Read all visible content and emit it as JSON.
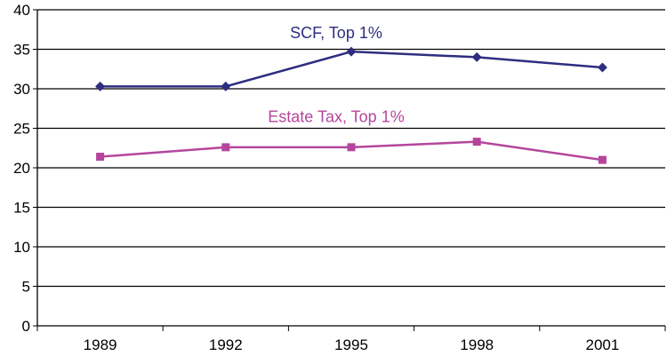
{
  "chart_data": {
    "type": "line",
    "categories": [
      "1989",
      "1992",
      "1995",
      "1998",
      "2001"
    ],
    "ylim": [
      0,
      40
    ],
    "yticks": [
      0,
      5,
      10,
      15,
      20,
      25,
      30,
      35,
      40
    ],
    "grid": true,
    "series": [
      {
        "name": "SCF, Top 1%",
        "values": [
          30.3,
          30.3,
          34.7,
          34.0,
          32.7
        ],
        "color": "#2E2D7F",
        "marker": "diamond"
      },
      {
        "name": "Estate Tax, Top 1%",
        "values": [
          21.4,
          22.6,
          22.6,
          23.3,
          21.0
        ],
        "color": "#B5459C",
        "marker": "square"
      }
    ]
  }
}
